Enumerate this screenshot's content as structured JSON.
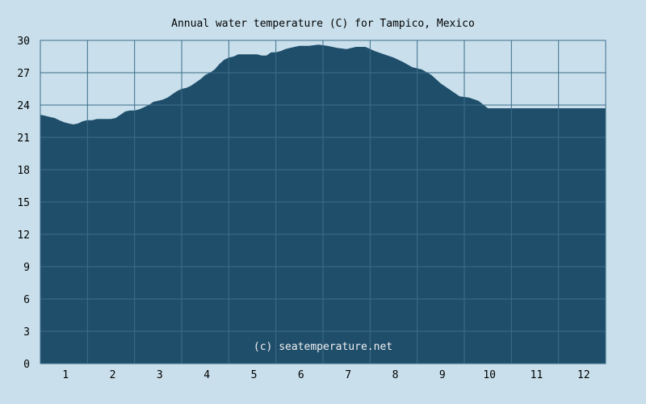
{
  "chart_data": {
    "type": "area",
    "title": "Annual water temperature (C) for Tampico, Mexico",
    "watermark": "(c) seatemperature.net",
    "xlabel": "",
    "ylabel": "",
    "x_ticks": [
      "1",
      "2",
      "3",
      "4",
      "5",
      "6",
      "7",
      "8",
      "9",
      "10",
      "11",
      "12"
    ],
    "y_ticks": [
      "0",
      "3",
      "6",
      "9",
      "12",
      "15",
      "18",
      "21",
      "24",
      "27",
      "30"
    ],
    "ylim": [
      0,
      30
    ],
    "xlim": [
      0.5,
      12.5
    ],
    "grid": true,
    "colors": {
      "background": "#c9e0ec",
      "area_fill": "#1f4e6b",
      "grid_line": "#3d6d8a",
      "plot_border": "#3d6d8a"
    },
    "series": [
      {
        "x": [
          0.5,
          0.6,
          0.7,
          0.8,
          0.9,
          1.0,
          1.1,
          1.2,
          1.3,
          1.4,
          1.5,
          1.6,
          1.7,
          1.8,
          1.9,
          2.0,
          2.1,
          2.2,
          2.3,
          2.4,
          2.5,
          2.6,
          2.7,
          2.8,
          2.9,
          3.0,
          3.1,
          3.2,
          3.3,
          3.4,
          3.5,
          3.6,
          3.7,
          3.8,
          3.9,
          4.0,
          4.1,
          4.2,
          4.3,
          4.4,
          4.5,
          4.6,
          4.7,
          4.8,
          4.9,
          5.0,
          5.1,
          5.2,
          5.3,
          5.4,
          5.5,
          5.6,
          5.7,
          5.8,
          5.9,
          6.0,
          6.2,
          6.4,
          6.6,
          6.8,
          7.0,
          7.2,
          7.4,
          7.6,
          7.8,
          8.0,
          8.2,
          8.4,
          8.6,
          8.8,
          9.0,
          9.2,
          9.4,
          9.6,
          9.8,
          10.0,
          10.2,
          10.4,
          10.6,
          10.8,
          11.0,
          11.2,
          11.4,
          11.6,
          11.8,
          12.0,
          12.2,
          12.4,
          12.5
        ],
        "values": [
          23.1,
          23.0,
          22.9,
          22.8,
          22.6,
          22.4,
          22.3,
          22.2,
          22.3,
          22.5,
          22.6,
          22.6,
          22.7,
          22.7,
          22.7,
          22.7,
          22.8,
          23.1,
          23.4,
          23.5,
          23.5,
          23.6,
          23.8,
          24.0,
          24.3,
          24.4,
          24.5,
          24.7,
          25.0,
          25.3,
          25.5,
          25.6,
          25.8,
          26.1,
          26.4,
          26.8,
          27.0,
          27.3,
          27.8,
          28.2,
          28.4,
          28.5,
          28.7,
          28.7,
          28.7,
          28.7,
          28.7,
          28.6,
          28.6,
          28.9,
          28.9,
          29.0,
          29.2,
          29.3,
          29.4,
          29.5,
          29.5,
          29.6,
          29.5,
          29.3,
          29.2,
          29.4,
          29.4,
          29.0,
          28.7,
          28.4,
          28.0,
          27.5,
          27.3,
          26.8,
          26.0,
          25.4,
          24.8,
          24.7,
          24.4,
          23.7,
          23.7,
          23.7,
          23.7,
          23.7,
          23.7,
          23.7,
          23.7,
          23.7,
          23.7,
          23.7,
          23.7,
          23.7,
          23.7
        ]
      }
    ]
  }
}
